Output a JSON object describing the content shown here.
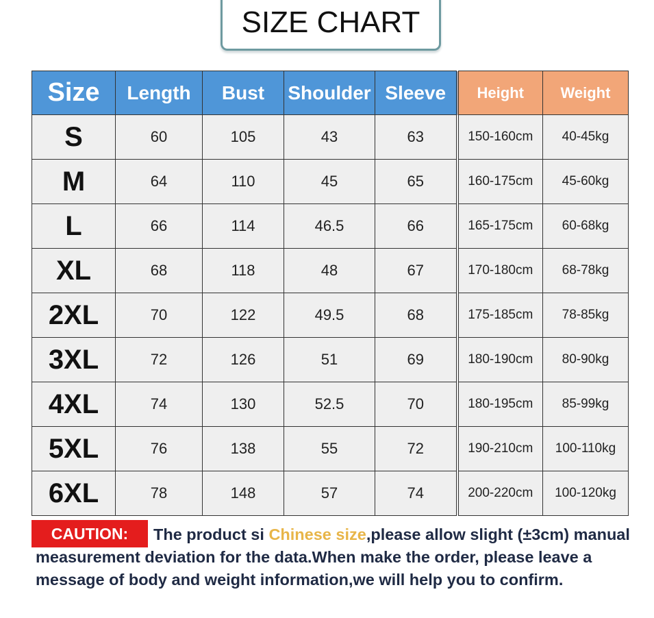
{
  "title": "SIZE CHART",
  "colors": {
    "header_blue": "#4f96d8",
    "header_orange": "#f2a678",
    "caution_red": "#e41d1d",
    "highlight": "#e8b548"
  },
  "chart_data": {
    "type": "table",
    "title": "SIZE CHART",
    "columns": [
      "Size",
      "Length",
      "Bust",
      "Shoulder",
      "Sleeve",
      "Height",
      "Weight"
    ],
    "rows": [
      [
        "S",
        "60",
        "105",
        "43",
        "63",
        "150-160cm",
        "40-45kg"
      ],
      [
        "M",
        "64",
        "110",
        "45",
        "65",
        "160-175cm",
        "45-60kg"
      ],
      [
        "L",
        "66",
        "114",
        "46.5",
        "66",
        "165-175cm",
        "60-68kg"
      ],
      [
        "XL",
        "68",
        "118",
        "48",
        "67",
        "170-180cm",
        "68-78kg"
      ],
      [
        "2XL",
        "70",
        "122",
        "49.5",
        "68",
        "175-185cm",
        "78-85kg"
      ],
      [
        "3XL",
        "72",
        "126",
        "51",
        "69",
        "180-190cm",
        "80-90kg"
      ],
      [
        "4XL",
        "74",
        "130",
        "52.5",
        "70",
        "180-195cm",
        "85-99kg"
      ],
      [
        "5XL",
        "76",
        "138",
        "55",
        "72",
        "190-210cm",
        "100-110kg"
      ],
      [
        "6XL",
        "78",
        "148",
        "57",
        "74",
        "200-220cm",
        "100-120kg"
      ]
    ]
  },
  "caution": {
    "label": "CAUTION:",
    "text_before": "The product si ",
    "highlight": "Chinese size",
    "text_after": ",please allow slight (±3cm) manual measurement deviation for the data.When make the order, please leave a message of body and weight information,we will help you to confirm."
  }
}
